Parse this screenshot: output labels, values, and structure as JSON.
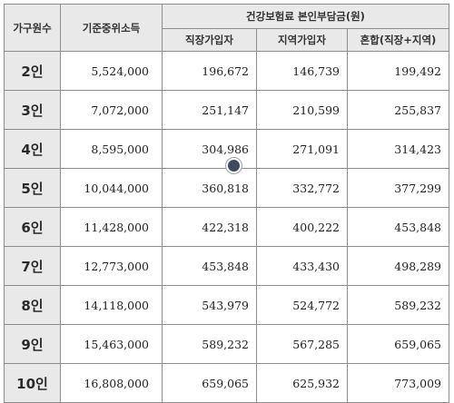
{
  "headers": {
    "household": "가구원수",
    "income": "기준중위소득",
    "premium_group": "건강보험료 본인부담금(원)",
    "employee": "직장가입자",
    "regional": "지역가입자",
    "mixed": "혼합(직장+지역)"
  },
  "rows": [
    {
      "household": "2인",
      "income": "5,524,000",
      "employee": "196,672",
      "regional": "146,739",
      "mixed": "199,492"
    },
    {
      "household": "3인",
      "income": "7,072,000",
      "employee": "251,147",
      "regional": "210,599",
      "mixed": "255,837"
    },
    {
      "household": "4인",
      "income": "8,595,000",
      "employee": "304,986",
      "regional": "271,091",
      "mixed": "314,423"
    },
    {
      "household": "5인",
      "income": "10,044,000",
      "employee": "360,818",
      "regional": "332,772",
      "mixed": "377,299"
    },
    {
      "household": "6인",
      "income": "11,428,000",
      "employee": "422,318",
      "regional": "400,222",
      "mixed": "453,848"
    },
    {
      "household": "7인",
      "income": "12,773,000",
      "employee": "453,848",
      "regional": "433,430",
      "mixed": "498,289"
    },
    {
      "household": "8인",
      "income": "14,118,000",
      "employee": "543,979",
      "regional": "524,772",
      "mixed": "589,232"
    },
    {
      "household": "9인",
      "income": "15,463,000",
      "employee": "589,232",
      "regional": "567,285",
      "mixed": "659,065"
    },
    {
      "household": "10인",
      "income": "16,808,000",
      "employee": "659,065",
      "regional": "625,932",
      "mixed": "773,009"
    }
  ]
}
